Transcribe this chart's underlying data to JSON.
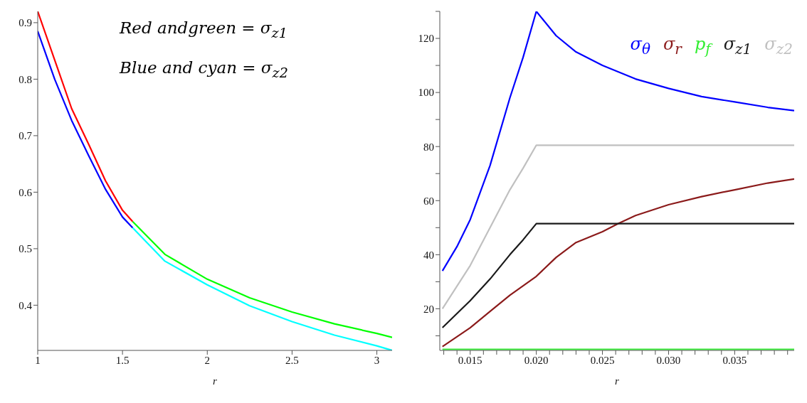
{
  "chart_data": [
    {
      "type": "line",
      "xlabel": "r",
      "xlim": [
        1,
        3.09
      ],
      "ylim": [
        0.32,
        0.92
      ],
      "xticks": [
        1,
        1.5,
        2,
        2.5,
        3
      ],
      "yticks": [
        0.4,
        0.5,
        0.6,
        0.7,
        0.8,
        0.9
      ],
      "grid": false,
      "legend": false,
      "marker": "none",
      "line_style": "solid",
      "annotations": [
        "Red andgreen = σ$_{z1}$",
        "Blue and cyan = σ$_{z2}$"
      ],
      "series": [
        {
          "color": "#ff0000",
          "x": [
            1,
            1.1,
            1.2,
            1.3,
            1.4,
            1.5,
            1.56
          ],
          "values": [
            0.92,
            0.834,
            0.748,
            0.685,
            0.62,
            0.568,
            0.548
          ]
        },
        {
          "color": "#0000ff",
          "x": [
            1,
            1.1,
            1.2,
            1.3,
            1.4,
            1.5,
            1.56
          ],
          "values": [
            0.885,
            0.8,
            0.727,
            0.665,
            0.605,
            0.556,
            0.537
          ]
        },
        {
          "color": "#00ff00",
          "x": [
            1.56,
            1.75,
            2,
            2.25,
            2.5,
            2.75,
            3,
            3.09
          ],
          "values": [
            0.548,
            0.49,
            0.446,
            0.413,
            0.388,
            0.367,
            0.35,
            0.343
          ]
        },
        {
          "color": "#00ffff",
          "x": [
            1.56,
            1.75,
            2,
            2.25,
            2.5,
            2.75,
            3,
            3.09
          ],
          "values": [
            0.537,
            0.478,
            0.436,
            0.399,
            0.371,
            0.347,
            0.328,
            0.32
          ]
        }
      ]
    },
    {
      "type": "line",
      "xlabel": "r",
      "xlim": [
        0.0127,
        0.0395
      ],
      "ylim": [
        4.6,
        130
      ],
      "xticks": [
        {
          "value": 0.013,
          "label": null
        },
        {
          "value": 0.014,
          "label": null
        },
        0.015,
        {
          "value": 0.016,
          "label": null
        },
        {
          "value": 0.017,
          "label": null
        },
        {
          "value": 0.018,
          "label": null
        },
        {
          "value": 0.019,
          "label": null
        },
        {
          "value": 0.02,
          "label": "0.020"
        },
        {
          "value": 0.021,
          "label": null
        },
        {
          "value": 0.022,
          "label": null
        },
        {
          "value": 0.023,
          "label": null
        },
        {
          "value": 0.024,
          "label": null
        },
        0.025,
        {
          "value": 0.026,
          "label": null
        },
        {
          "value": 0.027,
          "label": null
        },
        {
          "value": 0.028,
          "label": null
        },
        {
          "value": 0.029,
          "label": null
        },
        {
          "value": 0.03,
          "label": "0.030"
        },
        {
          "value": 0.031,
          "label": null
        },
        {
          "value": 0.032,
          "label": null
        },
        {
          "value": 0.033,
          "label": null
        },
        {
          "value": 0.034,
          "label": null
        },
        0.035,
        {
          "value": 0.036,
          "label": null
        },
        {
          "value": 0.037,
          "label": null
        },
        {
          "value": 0.038,
          "label": null
        },
        {
          "value": 0.039,
          "label": null
        }
      ],
      "yticks": [
        {
          "value": 10,
          "label": null
        },
        20,
        {
          "value": 30,
          "label": null
        },
        40,
        {
          "value": 50,
          "label": null
        },
        60,
        {
          "value": 70,
          "label": null
        },
        80,
        {
          "value": 90,
          "label": null
        },
        100,
        {
          "value": 110,
          "label": null
        },
        120,
        {
          "value": 130,
          "label": null
        }
      ],
      "grid": false,
      "legend": "top right",
      "marker": "none",
      "line_style": "solid",
      "series": [
        {
          "name": "σ$_{θ}$",
          "color": "#0000ff",
          "x": [
            0.0129,
            0.014,
            0.015,
            0.0165,
            0.018,
            0.019,
            0.02,
            0.0215,
            0.023,
            0.025,
            0.0275,
            0.03,
            0.0325,
            0.035,
            0.0375,
            0.0395
          ],
          "values": [
            34,
            43,
            53,
            73,
            98,
            113,
            130,
            121,
            115,
            110,
            105,
            101.5,
            98.5,
            96.5,
            94.5,
            93.3
          ]
        },
        {
          "name": "σ$_{r}$",
          "color": "#8b1a1a",
          "x": [
            0.0129,
            0.015,
            0.0165,
            0.018,
            0.02,
            0.0215,
            0.023,
            0.025,
            0.0262,
            0.0275,
            0.03,
            0.0325,
            0.035,
            0.0375,
            0.0395
          ],
          "values": [
            6,
            13,
            19,
            25,
            32,
            39,
            44.5,
            48.5,
            51.5,
            54.5,
            58.5,
            61.5,
            64,
            66.5,
            68
          ]
        },
        {
          "name": "p$_{f}$",
          "color": "#33ee33",
          "x": [
            0.0129,
            0.0395
          ],
          "values": [
            5,
            5
          ]
        },
        {
          "name": "σ$_{z1}$",
          "color": "#1a1a1a",
          "x": [
            0.0129,
            0.015,
            0.0165,
            0.018,
            0.019,
            0.02,
            0.0395
          ],
          "values": [
            13,
            23,
            31,
            40,
            45.5,
            51.5,
            51.5
          ]
        },
        {
          "name": "σ$_{z2}$",
          "color": "#c0c0c0",
          "x": [
            0.0129,
            0.015,
            0.0165,
            0.018,
            0.019,
            0.02,
            0.0395
          ],
          "values": [
            20,
            36,
            50,
            64,
            72,
            80.5,
            80.5
          ]
        }
      ]
    }
  ]
}
